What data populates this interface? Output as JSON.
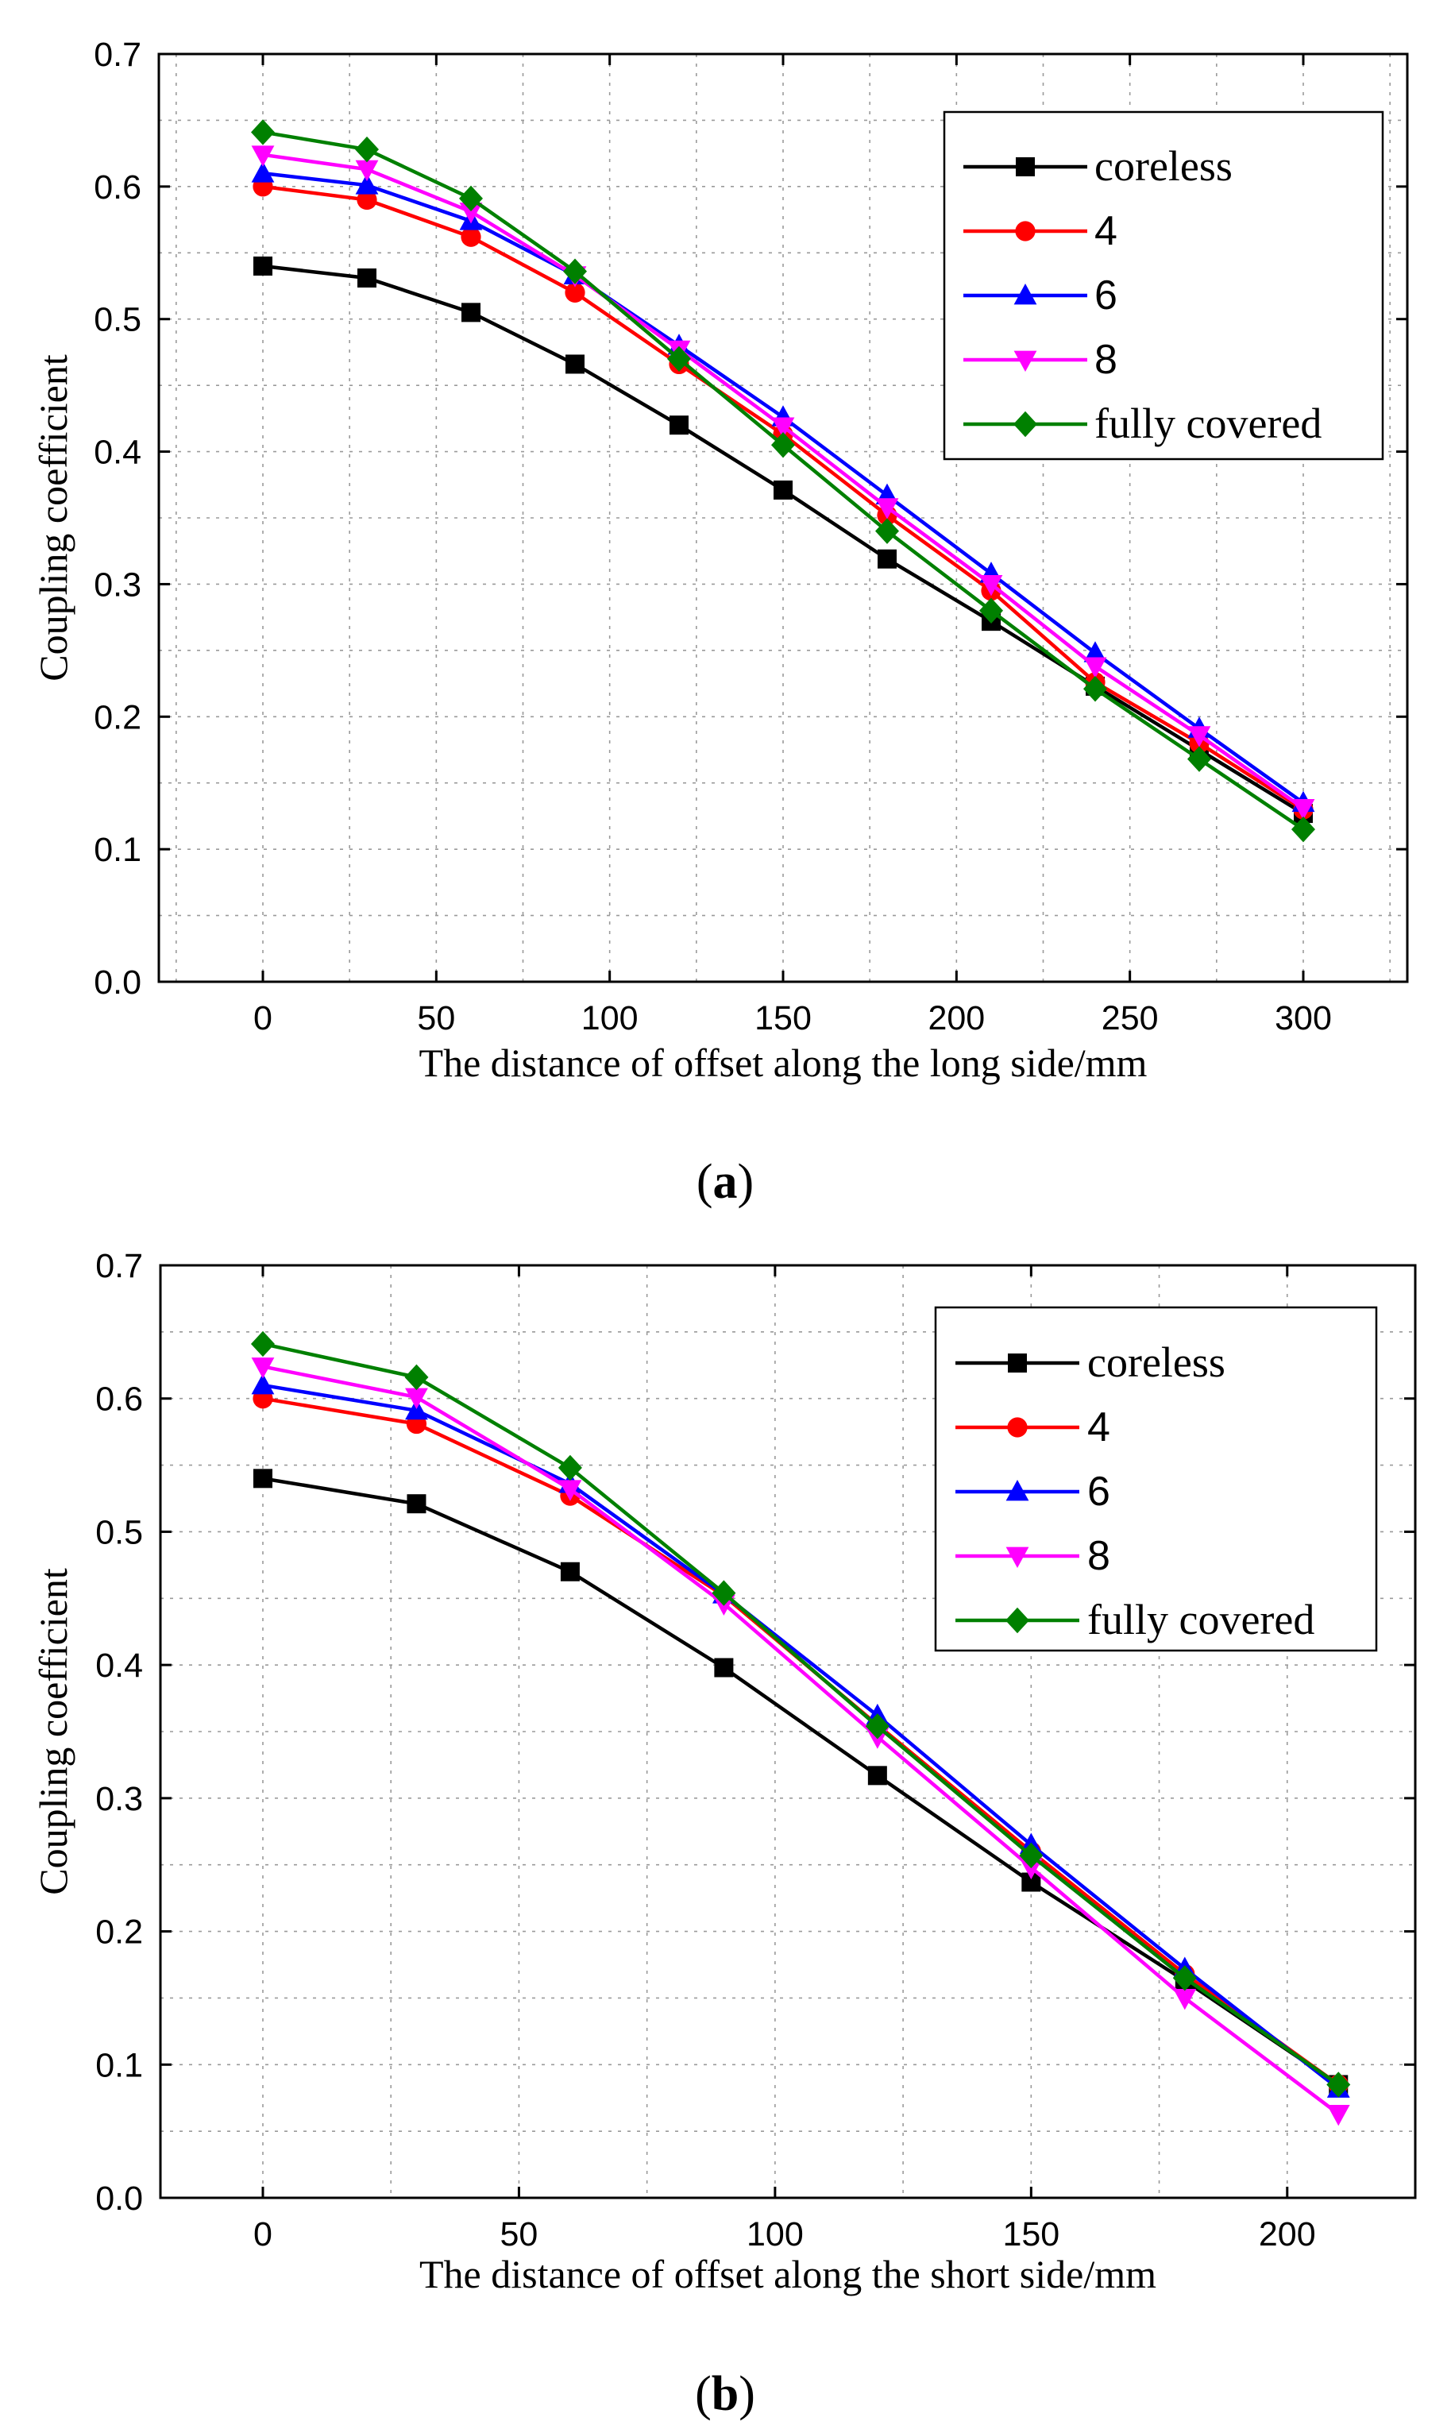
{
  "chart_data": [
    {
      "type": "line",
      "caption_open": "(",
      "caption_letter": "a",
      "caption_close": ")",
      "title": "",
      "xlabel": "The distance of offset along the long side/mm",
      "ylabel": "Coupling coefficient",
      "xlim": [
        -30,
        330
      ],
      "ylim": [
        0,
        0.7
      ],
      "xticks": [
        0,
        50,
        100,
        150,
        200,
        250,
        300
      ],
      "xtick_labels": [
        "0",
        "50",
        "100",
        "150",
        "200",
        "250",
        "300"
      ],
      "yticks": [
        0,
        0.1,
        0.2,
        0.3,
        0.4,
        0.5,
        0.6,
        0.7
      ],
      "ytick_labels": [
        "0.0",
        "0.1",
        "0.2",
        "0.3",
        "0.4",
        "0.5",
        "0.6",
        "0.7"
      ],
      "grid": true,
      "legend_position": "top-right",
      "x": [
        0,
        30,
        60,
        90,
        120,
        150,
        180,
        210,
        240,
        270,
        300
      ],
      "series": [
        {
          "name": "coreless",
          "color": "#000000",
          "marker": "square",
          "values": [
            0.54,
            0.531,
            0.505,
            0.466,
            0.42,
            0.371,
            0.319,
            0.272,
            0.223,
            0.175,
            0.127
          ]
        },
        {
          "name": "4",
          "color": "#ff0000",
          "marker": "circle",
          "values": [
            0.6,
            0.59,
            0.562,
            0.52,
            0.466,
            0.413,
            0.352,
            0.295,
            0.226,
            0.18,
            0.13
          ]
        },
        {
          "name": "6",
          "color": "#0000ff",
          "marker": "triangle-up",
          "values": [
            0.61,
            0.601,
            0.574,
            0.533,
            0.48,
            0.426,
            0.367,
            0.308,
            0.248,
            0.191,
            0.135
          ]
        },
        {
          "name": "8",
          "color": "#ff00ff",
          "marker": "triangle-down",
          "values": [
            0.624,
            0.613,
            0.581,
            0.533,
            0.477,
            0.419,
            0.358,
            0.3,
            0.238,
            0.186,
            0.131
          ]
        },
        {
          "name": "fully covered",
          "color": "#008000",
          "marker": "diamond",
          "values": [
            0.641,
            0.628,
            0.591,
            0.536,
            0.47,
            0.405,
            0.34,
            0.28,
            0.221,
            0.168,
            0.115
          ]
        }
      ]
    },
    {
      "type": "line",
      "caption_open": "(",
      "caption_letter": "b",
      "caption_close": ")",
      "title": "",
      "xlabel": "The distance of offset along the short side/mm",
      "ylabel": "Coupling coefficient",
      "xlim": [
        -20,
        225
      ],
      "ylim": [
        0,
        0.7
      ],
      "xticks": [
        0,
        50,
        100,
        150,
        200
      ],
      "xtick_labels": [
        "0",
        "50",
        "100",
        "150",
        "200"
      ],
      "yticks": [
        0,
        0.1,
        0.2,
        0.3,
        0.4,
        0.5,
        0.6,
        0.7
      ],
      "ytick_labels": [
        "0.0",
        "0.1",
        "0.2",
        "0.3",
        "0.4",
        "0.5",
        "0.6",
        "0.7"
      ],
      "grid": true,
      "legend_position": "top-right",
      "x": [
        0,
        30,
        60,
        90,
        120,
        150,
        180,
        210
      ],
      "series": [
        {
          "name": "coreless",
          "color": "#000000",
          "marker": "square",
          "values": [
            0.54,
            0.521,
            0.47,
            0.398,
            0.317,
            0.237,
            0.163,
            0.085
          ]
        },
        {
          "name": "4",
          "color": "#ff0000",
          "marker": "circle",
          "values": [
            0.6,
            0.581,
            0.527,
            0.452,
            0.355,
            0.26,
            0.168,
            0.085
          ]
        },
        {
          "name": "6",
          "color": "#0000ff",
          "marker": "triangle-up",
          "values": [
            0.61,
            0.591,
            0.536,
            0.453,
            0.362,
            0.265,
            0.172,
            0.082
          ]
        },
        {
          "name": "8",
          "color": "#ff00ff",
          "marker": "triangle-down",
          "values": [
            0.624,
            0.601,
            0.532,
            0.446,
            0.346,
            0.248,
            0.15,
            0.063
          ]
        },
        {
          "name": "fully covered",
          "color": "#008000",
          "marker": "diamond",
          "values": [
            0.641,
            0.616,
            0.548,
            0.454,
            0.354,
            0.257,
            0.165,
            0.085
          ]
        }
      ]
    }
  ]
}
